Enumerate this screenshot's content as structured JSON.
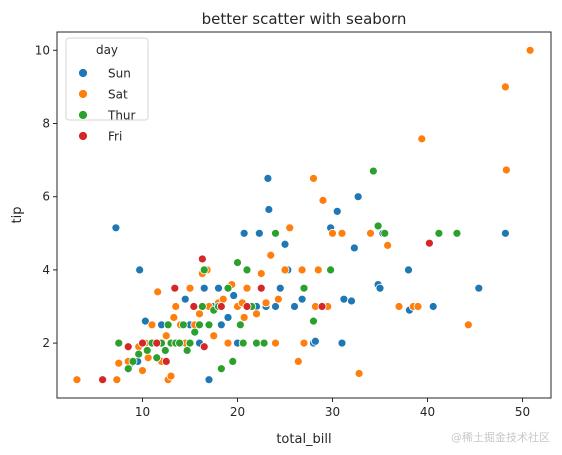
{
  "chart_data": {
    "type": "scatter",
    "title": "better scatter with seaborn",
    "xlabel": "total_bill",
    "ylabel": "tip",
    "xlim": [
      1.0,
      53.0
    ],
    "ylim": [
      0.5,
      10.5
    ],
    "xticks": [
      10,
      20,
      30,
      40,
      50
    ],
    "yticks": [
      2,
      4,
      6,
      8,
      10
    ],
    "grid": false,
    "legend_title": "day",
    "legend_position": "upper left",
    "series": [
      {
        "name": "Sun",
        "color": "#1f77b4",
        "points": [
          [
            7.2,
            5.15
          ],
          [
            9.7,
            4.0
          ],
          [
            10.3,
            2.6
          ],
          [
            9.5,
            1.5
          ],
          [
            8.8,
            1.45
          ],
          [
            11.2,
            2.0
          ],
          [
            12.0,
            2.5
          ],
          [
            13.0,
            2.0
          ],
          [
            13.5,
            3.0
          ],
          [
            14.0,
            2.0
          ],
          [
            14.5,
            3.2
          ],
          [
            15.0,
            2.5
          ],
          [
            15.5,
            3.0
          ],
          [
            16.0,
            2.0
          ],
          [
            16.5,
            3.5
          ],
          [
            17.0,
            1.0
          ],
          [
            17.5,
            3.0
          ],
          [
            18.0,
            3.5
          ],
          [
            18.3,
            2.5
          ],
          [
            19.0,
            2.7
          ],
          [
            19.6,
            3.3
          ],
          [
            20.0,
            2.0
          ],
          [
            20.7,
            5.0
          ],
          [
            21.0,
            3.5
          ],
          [
            22.0,
            3.0
          ],
          [
            22.3,
            5.0
          ],
          [
            23.0,
            3.0
          ],
          [
            23.2,
            6.5
          ],
          [
            23.3,
            5.65
          ],
          [
            24.0,
            3.0
          ],
          [
            24.5,
            3.5
          ],
          [
            25.0,
            4.7
          ],
          [
            25.3,
            4.0
          ],
          [
            26.0,
            3.0
          ],
          [
            26.8,
            3.2
          ],
          [
            28.0,
            2.0
          ],
          [
            28.2,
            2.05
          ],
          [
            29.8,
            5.15
          ],
          [
            30.5,
            5.6
          ],
          [
            31.0,
            2.0
          ],
          [
            31.2,
            3.2
          ],
          [
            32.0,
            3.15
          ],
          [
            32.3,
            4.6
          ],
          [
            32.7,
            6.0
          ],
          [
            34.8,
            3.6
          ],
          [
            35.0,
            3.5
          ],
          [
            35.3,
            5.0
          ],
          [
            38.0,
            4.0
          ],
          [
            38.1,
            2.9
          ],
          [
            40.6,
            3.0
          ],
          [
            45.4,
            3.5
          ],
          [
            48.2,
            5.0
          ]
        ]
      },
      {
        "name": "Sat",
        "color": "#ff7f0e",
        "points": [
          [
            3.1,
            1.0
          ],
          [
            7.3,
            1.0
          ],
          [
            7.5,
            1.45
          ],
          [
            8.5,
            1.5
          ],
          [
            9.6,
            1.9
          ],
          [
            10.0,
            1.25
          ],
          [
            10.3,
            2.0
          ],
          [
            10.6,
            1.6
          ],
          [
            11.0,
            2.5
          ],
          [
            11.6,
            3.4
          ],
          [
            12.0,
            1.5
          ],
          [
            12.5,
            2.2
          ],
          [
            12.7,
            1.0
          ],
          [
            13.0,
            1.1
          ],
          [
            13.3,
            2.7
          ],
          [
            13.5,
            3.0
          ],
          [
            14.0,
            2.5
          ],
          [
            14.5,
            2.0
          ],
          [
            15.0,
            2.0
          ],
          [
            15.0,
            3.5
          ],
          [
            15.5,
            2.5
          ],
          [
            16.0,
            2.8
          ],
          [
            16.3,
            3.9
          ],
          [
            16.8,
            4.0
          ],
          [
            17.0,
            3.0
          ],
          [
            17.5,
            2.2
          ],
          [
            18.0,
            3.1
          ],
          [
            18.5,
            3.2
          ],
          [
            19.0,
            2.0
          ],
          [
            19.4,
            3.6
          ],
          [
            20.0,
            3.0
          ],
          [
            20.5,
            3.1
          ],
          [
            20.7,
            2.7
          ],
          [
            21.0,
            3.5
          ],
          [
            22.0,
            2.8
          ],
          [
            22.5,
            3.9
          ],
          [
            23.0,
            3.1
          ],
          [
            23.5,
            4.4
          ],
          [
            24.0,
            2.0
          ],
          [
            24.3,
            3.2
          ],
          [
            25.0,
            4.0
          ],
          [
            25.5,
            5.15
          ],
          [
            26.4,
            1.5
          ],
          [
            26.8,
            4.0
          ],
          [
            27.0,
            2.0
          ],
          [
            28.0,
            6.5
          ],
          [
            28.2,
            3.0
          ],
          [
            28.5,
            4.0
          ],
          [
            29.0,
            5.9
          ],
          [
            29.5,
            3.0
          ],
          [
            30.0,
            5.0
          ],
          [
            31.0,
            5.0
          ],
          [
            32.8,
            1.17
          ],
          [
            34.0,
            5.0
          ],
          [
            35.8,
            4.67
          ],
          [
            37.0,
            3.0
          ],
          [
            38.5,
            3.0
          ],
          [
            39.0,
            3.0
          ],
          [
            39.4,
            7.58
          ],
          [
            44.3,
            2.5
          ],
          [
            48.2,
            9.0
          ],
          [
            48.3,
            6.73
          ],
          [
            50.8,
            10.0
          ]
        ]
      },
      {
        "name": "Thur",
        "color": "#2ca02c",
        "points": [
          [
            7.5,
            2.0
          ],
          [
            8.5,
            1.3
          ],
          [
            9.0,
            1.5
          ],
          [
            9.6,
            1.7
          ],
          [
            10.0,
            2.0
          ],
          [
            10.5,
            1.8
          ],
          [
            11.0,
            2.0
          ],
          [
            11.5,
            1.6
          ],
          [
            12.0,
            2.0
          ],
          [
            12.4,
            1.8
          ],
          [
            12.7,
            2.5
          ],
          [
            13.0,
            2.0
          ],
          [
            13.5,
            2.0
          ],
          [
            13.9,
            2.0
          ],
          [
            14.3,
            2.5
          ],
          [
            14.7,
            1.8
          ],
          [
            15.0,
            2.0
          ],
          [
            15.5,
            2.3
          ],
          [
            16.0,
            2.5
          ],
          [
            16.3,
            3.0
          ],
          [
            16.5,
            4.0
          ],
          [
            17.0,
            2.5
          ],
          [
            17.5,
            2.9
          ],
          [
            18.0,
            3.0
          ],
          [
            18.3,
            1.3
          ],
          [
            19.0,
            3.5
          ],
          [
            19.5,
            1.5
          ],
          [
            20.0,
            4.2
          ],
          [
            20.3,
            2.5
          ],
          [
            20.6,
            2.0
          ],
          [
            21.0,
            4.0
          ],
          [
            21.5,
            3.0
          ],
          [
            22.0,
            2.0
          ],
          [
            22.8,
            2.0
          ],
          [
            24.0,
            5.0
          ],
          [
            27.0,
            3.5
          ],
          [
            28.0,
            2.6
          ],
          [
            29.8,
            4.0
          ],
          [
            34.3,
            6.7
          ],
          [
            34.8,
            5.2
          ],
          [
            35.5,
            5.0
          ],
          [
            41.2,
            5.0
          ],
          [
            43.1,
            5.0
          ]
        ]
      },
      {
        "name": "Fri",
        "color": "#d62728",
        "points": [
          [
            5.8,
            1.0
          ],
          [
            8.5,
            1.9
          ],
          [
            10.0,
            2.0
          ],
          [
            11.5,
            2.0
          ],
          [
            12.5,
            1.5
          ],
          [
            13.4,
            3.5
          ],
          [
            15.4,
            3.0
          ],
          [
            16.3,
            4.3
          ],
          [
            16.5,
            1.9
          ],
          [
            18.3,
            3.0
          ],
          [
            21.0,
            3.0
          ],
          [
            22.5,
            3.5
          ],
          [
            28.9,
            3.0
          ],
          [
            40.2,
            4.73
          ]
        ]
      }
    ]
  },
  "watermark": "@稀土掘金技术社区"
}
